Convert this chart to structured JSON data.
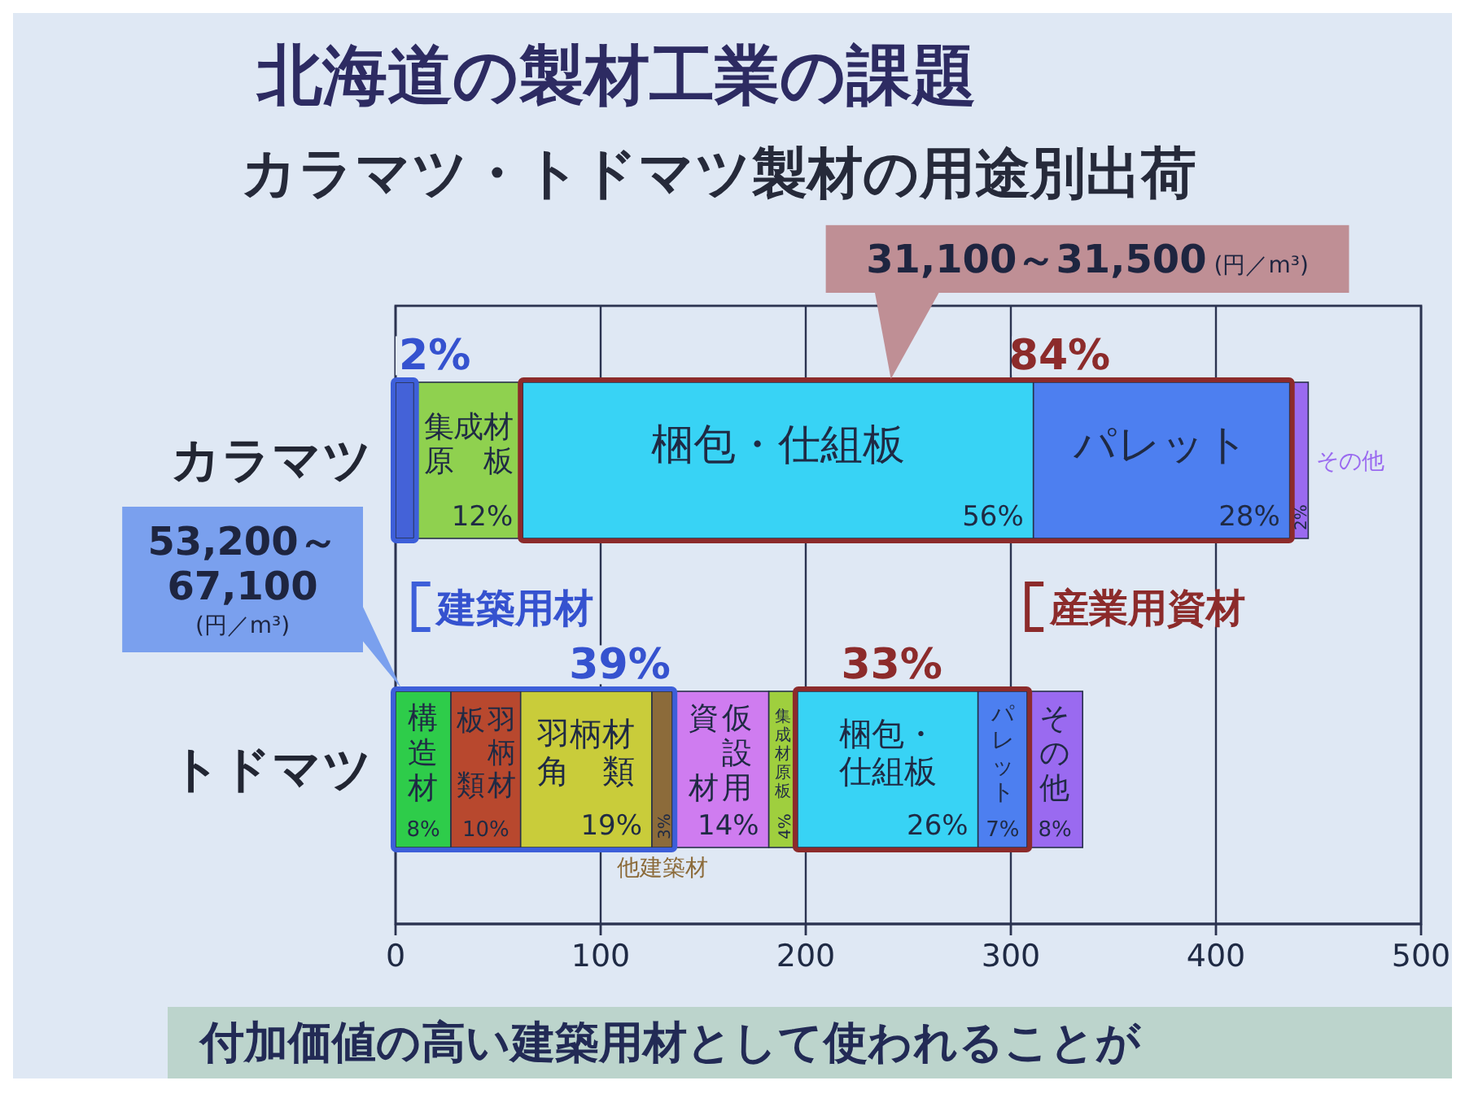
{
  "chart_data": {
    "type": "bar",
    "orientation": "horizontal",
    "stacked": true,
    "title": "北海道の製材工業の課題",
    "subtitle": "カラマツ・トドマツ製材の用途別出荷",
    "categories": [
      "カラマツ",
      "トドマツ"
    ],
    "xlim": [
      0,
      500
    ],
    "xticks": [
      0,
      100,
      200,
      300,
      400,
      500
    ],
    "grid": "x",
    "series": [
      {
        "color": "#4462d8",
        "values": [
          9,
          null
        ]
      },
      {
        "name": "集成材原板",
        "color": "#8fd14f",
        "values": [
          53,
          null
        ]
      },
      {
        "name": "梱包・仕組板",
        "color": "#38d3f5",
        "values": [
          249,
          null
        ]
      },
      {
        "name": "パレット",
        "color": "#4d7ff0",
        "values": [
          125,
          null
        ]
      },
      {
        "name": "その他",
        "color": "#9a6af0",
        "values": [
          9,
          null
        ]
      },
      {
        "name": "構造材",
        "color": "#2ecc4a",
        "values": [
          null,
          27
        ]
      },
      {
        "name": "羽柄材板類",
        "color": "#b8482e",
        "values": [
          null,
          34
        ]
      },
      {
        "name": "羽柄材角類",
        "color": "#c9cc3a",
        "values": [
          null,
          64
        ]
      },
      {
        "name": "他建築材",
        "color": "#8c6b3a",
        "values": [
          null,
          10
        ]
      },
      {
        "name": "仮設用資材",
        "color": "#cf7cf0",
        "values": [
          null,
          47
        ]
      },
      {
        "name": "集成材原板",
        "color": "#9fcf3e",
        "values": [
          null,
          14
        ]
      },
      {
        "name": "梱包・仕組板",
        "color": "#38d3f5",
        "values": [
          null,
          88
        ]
      },
      {
        "name": "パレット",
        "color": "#4d7ff0",
        "values": [
          null,
          24
        ]
      },
      {
        "name": "その他",
        "color": "#9a6af0",
        "values": [
          null,
          27
        ]
      }
    ],
    "annotations": [
      "2%",
      "84%",
      "31,100～31,500 (円／m³)",
      "建築用材",
      "産業用資材",
      "39%",
      "33%",
      "53,200～\n67,100\n(円／m³)",
      "付加価値の高い建築用材として使われることが",
      {
        "text": "12%",
        "x": 62,
        "y": "カラマツ"
      },
      {
        "text": "56%",
        "x": 311,
        "y": "カラマツ"
      },
      {
        "text": "28%",
        "x": 436,
        "y": "カラマツ"
      },
      {
        "text": "2%",
        "x": 445,
        "y": "カラマツ"
      },
      {
        "text": "8%",
        "x": 27,
        "y": "トドマツ"
      },
      {
        "text": "10%",
        "x": 61,
        "y": "トドマツ"
      },
      {
        "text": "19%",
        "x": 125,
        "y": "トドマツ"
      },
      {
        "text": "3%",
        "x": 135,
        "y": "トドマツ"
      },
      {
        "text": "14%",
        "x": 182,
        "y": "トドマツ"
      },
      {
        "text": "4%",
        "x": 196,
        "y": "トドマツ"
      },
      {
        "text": "26%",
        "x": 284,
        "y": "トドマツ"
      },
      {
        "text": "7%",
        "x": 308,
        "y": "トドマツ"
      },
      {
        "text": "8%",
        "x": 335,
        "y": "トドマツ"
      }
    ]
  }
}
